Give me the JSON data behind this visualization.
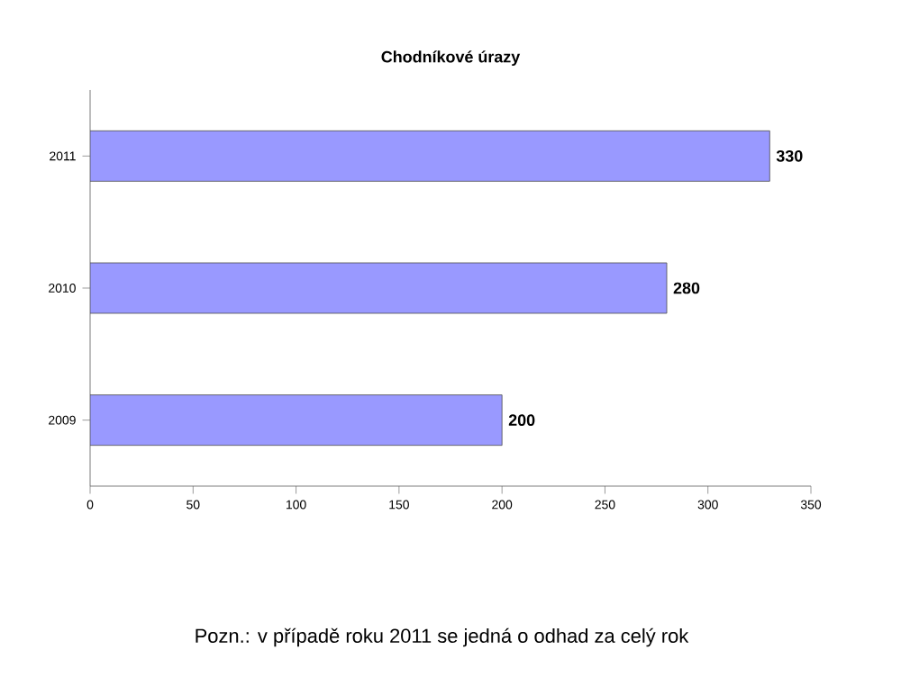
{
  "chart_data": {
    "type": "bar",
    "orientation": "horizontal",
    "title": "Chodníkové úrazy",
    "categories": [
      "2011",
      "2010",
      "2009"
    ],
    "values": [
      330,
      280,
      200
    ],
    "color": "#9999ff",
    "xlim": [
      0,
      350
    ],
    "xticks": [
      0,
      50,
      100,
      150,
      200,
      250,
      300,
      350
    ],
    "data_labels": true,
    "annotations": [
      "Pozn.: v případě roku 2011 se jedná o odhad za celý rok"
    ]
  }
}
